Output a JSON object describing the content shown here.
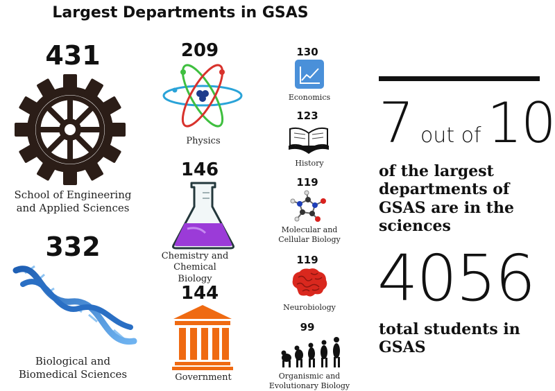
{
  "title": "Largest Departments in GSAS",
  "departments": [
    {
      "count": "431",
      "label_lines": [
        "School of Engineering",
        "and Applied Sciences"
      ],
      "icon": "gear-icon"
    },
    {
      "count": "332",
      "label_lines": [
        "Biological and",
        "Biomedical Sciences"
      ],
      "icon": "dna-icon"
    },
    {
      "count": "209",
      "label_lines": [
        "Physics"
      ],
      "icon": "atom-icon"
    },
    {
      "count": "146",
      "label_lines": [
        "Chemistry and Chemical",
        "Biology"
      ],
      "icon": "flask-icon"
    },
    {
      "count": "144",
      "label_lines": [
        "Government"
      ],
      "icon": "building-icon"
    },
    {
      "count": "130",
      "label_lines": [
        "Economics"
      ],
      "icon": "line-chart-icon"
    },
    {
      "count": "123",
      "label_lines": [
        "History"
      ],
      "icon": "book-icon"
    },
    {
      "count": "119",
      "label_lines": [
        "Molecular and",
        "Cellular Biology"
      ],
      "icon": "molecule-icon"
    },
    {
      "count": "119",
      "label_lines": [
        "Neurobiology"
      ],
      "icon": "brain-icon"
    },
    {
      "count": "99",
      "label_lines": [
        "Organismic and",
        "Evolutionary Biology"
      ],
      "icon": "evolution-icon"
    }
  ],
  "stats": {
    "ratio_num": "7",
    "ratio_mid": "out of",
    "ratio_den": "10",
    "ratio_text": [
      "of the largest",
      "departments of",
      "GSAS are in the",
      "sciences"
    ],
    "total": "4056",
    "total_text": [
      "total students in",
      "GSAS"
    ]
  },
  "colors": {
    "gear": "#2b1d17",
    "dna": "#2f74c9",
    "flask_liquid": "#9b3bd8",
    "government": "#ef6a12",
    "economics_tile": "#4a90d9",
    "brain": "#d9281e"
  }
}
